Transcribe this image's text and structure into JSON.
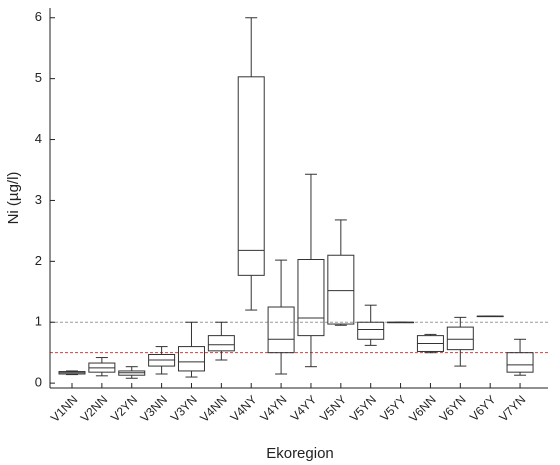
{
  "chart_data": {
    "type": "box",
    "y_label": "Ni (µg/l)",
    "x_label": "Ekoregion",
    "categories": [
      "V1NN",
      "V2NN",
      "V2YN",
      "V3NN",
      "V3YN",
      "V4NN",
      "V4NY",
      "V4YN",
      "V4YY",
      "V5NY",
      "V5YN",
      "V5YY",
      "V6NN",
      "V6YN",
      "V6YY",
      "V7YN"
    ],
    "min": [
      0.14,
      0.12,
      0.08,
      0.15,
      0.1,
      0.38,
      1.2,
      0.15,
      0.27,
      0.95,
      0.62,
      1.0,
      0.5,
      0.28,
      1.1,
      0.13
    ],
    "q1": [
      0.15,
      0.18,
      0.13,
      0.28,
      0.2,
      0.53,
      1.77,
      0.5,
      0.78,
      0.97,
      0.72,
      1.0,
      0.52,
      0.55,
      1.1,
      0.18
    ],
    "median": [
      0.17,
      0.25,
      0.17,
      0.38,
      0.35,
      0.63,
      2.18,
      0.72,
      1.07,
      1.52,
      0.88,
      1.0,
      0.65,
      0.72,
      1.1,
      0.3
    ],
    "q3": [
      0.19,
      0.33,
      0.2,
      0.47,
      0.6,
      0.78,
      5.03,
      1.25,
      2.03,
      2.1,
      1.0,
      1.0,
      0.78,
      0.92,
      1.1,
      0.5
    ],
    "max": [
      0.2,
      0.42,
      0.27,
      0.6,
      1.0,
      1.0,
      6.0,
      2.02,
      3.43,
      2.68,
      1.28,
      1.0,
      0.8,
      1.08,
      1.1,
      0.72
    ],
    "color": "#333333",
    "reference_lines": [
      {
        "value": 1,
        "color": "#9a9a9a"
      },
      {
        "value": 0.5,
        "color": "#d04040"
      }
    ],
    "ylim": [
      -0.08,
      6.16
    ],
    "yticks": [
      0,
      1,
      2,
      3,
      4,
      5,
      6
    ]
  }
}
